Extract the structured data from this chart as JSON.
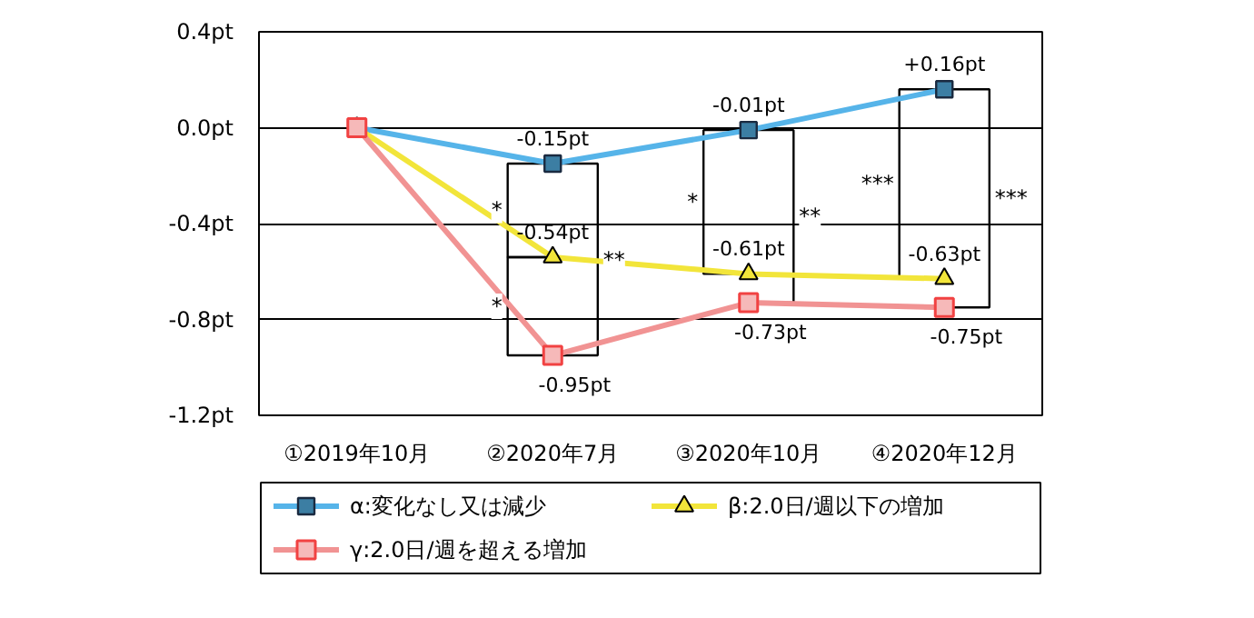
{
  "chart_data": {
    "type": "line",
    "categories": [
      "①2019年10月",
      "②2020年7月",
      "③2020年10月",
      "④2020年12月"
    ],
    "ylim": [
      -1.2,
      0.4
    ],
    "yticks": [
      {
        "value": 0.4,
        "label": "0.4pt"
      },
      {
        "value": 0,
        "label": "0.0pt"
      },
      {
        "value": -0.4,
        "label": "-0.4pt"
      },
      {
        "value": -0.8,
        "label": "-0.8pt"
      },
      {
        "value": -1.2,
        "label": "-1.2pt"
      }
    ],
    "grid": "y",
    "legend": "bottom",
    "line_style": "solid",
    "series": [
      {
        "name": "α:変化なし又は減少",
        "color": "#56b4e9",
        "marker": "square",
        "values": [
          0,
          -0.15,
          -0.01,
          0.16
        ],
        "value_labels": [
          null,
          "-0.15pt",
          "-0.01pt",
          "+0.16pt"
        ]
      },
      {
        "name": "β:2.0日/週以下の増加",
        "color": "#f2e53a",
        "marker": "triangle",
        "values": [
          0,
          -0.54,
          -0.61,
          -0.63
        ],
        "value_labels": [
          null,
          "-0.54pt",
          "-0.61pt",
          "-0.63pt"
        ]
      },
      {
        "name": "γ:2.0日/週を超える増加",
        "color": "#f19393",
        "marker": "square",
        "values": [
          0,
          -0.95,
          -0.73,
          -0.75
        ],
        "value_labels": [
          null,
          "-0.95pt",
          "-0.73pt",
          "-0.75pt"
        ]
      }
    ],
    "annotations": [
      "*",
      "*",
      "**",
      "*",
      "**",
      "***",
      "***"
    ]
  }
}
